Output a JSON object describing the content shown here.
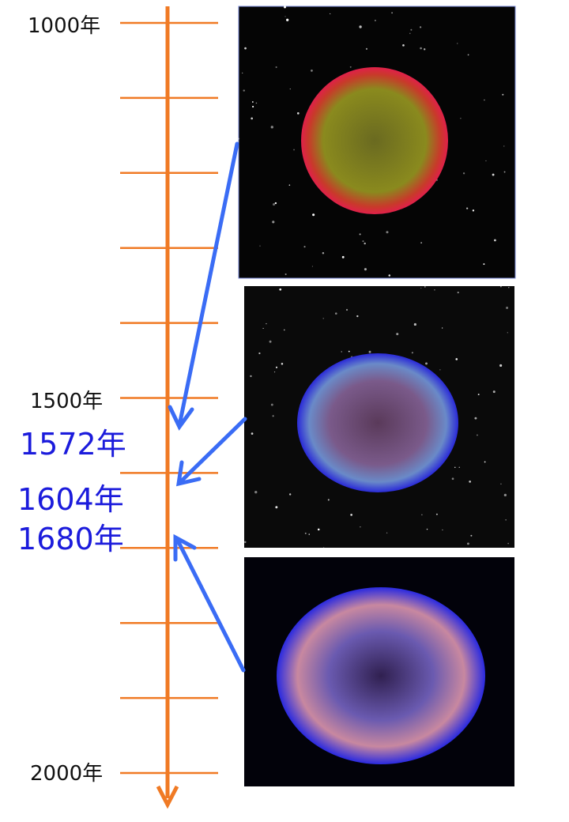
{
  "timeline": {
    "labels": [
      "1000年",
      "1500年",
      "2000年"
    ]
  },
  "events": [
    "1572年",
    "1604年",
    "1680年"
  ]
}
